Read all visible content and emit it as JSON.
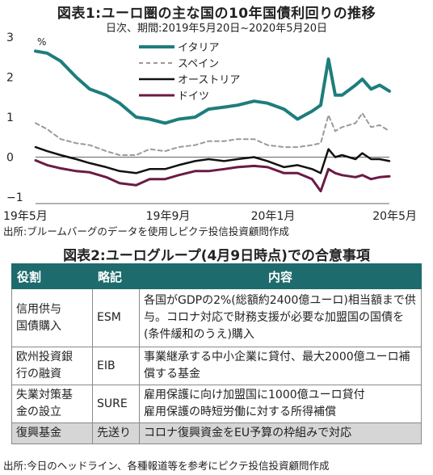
{
  "figure1": {
    "title": "図表1:ユーロ圏の主な国の10年国債利回りの推移",
    "subtitle": "日次、期間:2019年5月20日~2020年5月20日",
    "source": "出所:ブルームバーグのデータを使用しピクテ投信投資顧問作成"
  },
  "chart_data": {
    "type": "line",
    "unit": "%",
    "ylim": [
      -1,
      3
    ],
    "yticks": [
      3,
      2,
      1,
      0,
      -1
    ],
    "xticks": [
      "19年5月",
      "19年9月",
      "20年1月",
      "20年5月"
    ],
    "x": [
      "2019-05-20",
      "2019-06-01",
      "2019-06-15",
      "2019-07-01",
      "2019-07-15",
      "2019-08-01",
      "2019-08-15",
      "2019-09-01",
      "2019-09-15",
      "2019-10-01",
      "2019-10-15",
      "2019-11-01",
      "2019-11-15",
      "2019-12-01",
      "2019-12-15",
      "2020-01-01",
      "2020-01-15",
      "2020-02-01",
      "2020-02-15",
      "2020-03-01",
      "2020-03-10",
      "2020-03-18",
      "2020-03-25",
      "2020-04-01",
      "2020-04-15",
      "2020-04-22",
      "2020-05-01",
      "2020-05-10",
      "2020-05-20"
    ],
    "series": [
      {
        "name": "イタリア",
        "color": "#1e7d7d",
        "width": 4,
        "dash": "",
        "values": [
          2.65,
          2.6,
          2.4,
          2.0,
          1.7,
          1.55,
          1.35,
          1.0,
          0.95,
          0.85,
          0.95,
          1.0,
          1.2,
          1.25,
          1.3,
          1.4,
          1.35,
          1.2,
          0.95,
          1.15,
          1.3,
          2.45,
          1.55,
          1.55,
          1.8,
          1.95,
          1.7,
          1.8,
          1.65
        ]
      },
      {
        "name": "スペイン",
        "color": "#9a9a9a",
        "width": 2,
        "dash": "5,4",
        "values": [
          0.85,
          0.7,
          0.45,
          0.35,
          0.3,
          0.15,
          0.05,
          0.05,
          0.2,
          0.15,
          0.25,
          0.3,
          0.4,
          0.4,
          0.45,
          0.45,
          0.3,
          0.25,
          0.25,
          0.3,
          0.35,
          1.05,
          0.65,
          0.75,
          0.85,
          1.1,
          0.75,
          0.8,
          0.65
        ]
      },
      {
        "name": "オーストリア",
        "color": "#111111",
        "width": 2.5,
        "dash": "",
        "values": [
          0.25,
          0.15,
          0.05,
          -0.05,
          -0.15,
          -0.25,
          -0.35,
          -0.4,
          -0.3,
          -0.3,
          -0.2,
          -0.1,
          -0.05,
          -0.1,
          -0.05,
          0.0,
          -0.1,
          -0.25,
          -0.2,
          -0.3,
          -0.4,
          0.2,
          0.0,
          0.05,
          -0.05,
          0.1,
          -0.05,
          -0.05,
          -0.1
        ]
      },
      {
        "name": "ドイツ",
        "color": "#6b1a45",
        "width": 3,
        "dash": "",
        "values": [
          -0.08,
          -0.2,
          -0.28,
          -0.35,
          -0.38,
          -0.5,
          -0.65,
          -0.7,
          -0.55,
          -0.55,
          -0.45,
          -0.35,
          -0.35,
          -0.3,
          -0.25,
          -0.22,
          -0.25,
          -0.4,
          -0.4,
          -0.55,
          -0.85,
          -0.3,
          -0.4,
          -0.45,
          -0.5,
          -0.45,
          -0.55,
          -0.5,
          -0.48
        ]
      }
    ]
  },
  "figure2": {
    "title": "図表2:ユーログループ(4月9日時点)での合意事項",
    "headers": [
      "役割",
      "略記",
      "内容"
    ],
    "rows": [
      {
        "role": "信用供与\n国債購入",
        "abbr": "ESM",
        "content": "各国がGDPの2%(総額約2400億ユーロ)相当額まで供与。コロナ対応で財務支援が必要な加盟国の国債を(条件緩和のうえ)購入"
      },
      {
        "role": "欧州投資銀\n行の融資",
        "abbr": "EIB",
        "content": "事業継承する中小企業に貸付、最大2000億ユーロ補償する基金"
      },
      {
        "role": "失業対策基\n金の設立",
        "abbr": "SURE",
        "content": "雇用保護に向け加盟国に1000億ユーロ貸付\n雇用保護の時短労働に対する所得補償"
      },
      {
        "role": "復興基金",
        "abbr": "先送り",
        "content": "コロナ復興資金をEU予算の枠組みで対応"
      }
    ],
    "source": "出所:今日のヘッドライン、各種報道等を参考にピクテ投信投資顧問作成"
  }
}
